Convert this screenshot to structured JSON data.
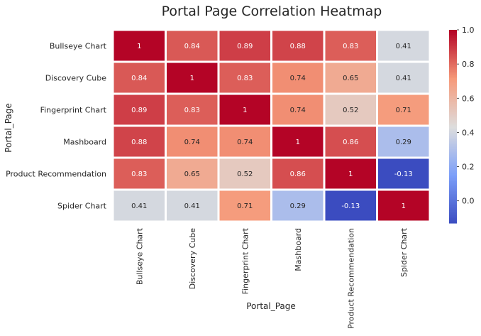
{
  "chart_data": {
    "type": "heatmap",
    "title": "Portal Page Correlation Heatmap",
    "xlabel": "Portal_Page",
    "ylabel": "Portal_Page",
    "rows": [
      "Bullseye Chart",
      "Discovery Cube",
      "Fingerprint Chart",
      "Mashboard",
      "Product Recommendation",
      "Spider Chart"
    ],
    "columns": [
      "Bullseye Chart",
      "Discovery Cube",
      "Fingerprint Chart",
      "Mashboard",
      "Product Recommendation",
      "Spider Chart"
    ],
    "values": [
      [
        1,
        0.84,
        0.89,
        0.88,
        0.83,
        0.41
      ],
      [
        0.84,
        1,
        0.83,
        0.74,
        0.65,
        0.41
      ],
      [
        0.89,
        0.83,
        1,
        0.74,
        0.52,
        0.71
      ],
      [
        0.88,
        0.74,
        0.74,
        1,
        0.86,
        0.29
      ],
      [
        0.83,
        0.65,
        0.52,
        0.86,
        1,
        -0.13
      ],
      [
        0.41,
        0.41,
        0.71,
        0.29,
        -0.13,
        1
      ]
    ],
    "cell_labels": [
      [
        "1",
        "0.84",
        "0.89",
        "0.88",
        "0.83",
        "0.41"
      ],
      [
        "0.84",
        "1",
        "0.83",
        "0.74",
        "0.65",
        "0.41"
      ],
      [
        "0.89",
        "0.83",
        "1",
        "0.74",
        "0.52",
        "0.71"
      ],
      [
        "0.88",
        "0.74",
        "0.74",
        "1",
        "0.86",
        "0.29"
      ],
      [
        "0.83",
        "0.65",
        "0.52",
        "0.86",
        "1",
        "-0.13"
      ],
      [
        "0.41",
        "0.41",
        "0.71",
        "0.29",
        "-0.13",
        "1"
      ]
    ],
    "colormap": "coolwarm",
    "color_range": [
      -0.13,
      1
    ],
    "colorbar_ticks": [
      "1.0",
      "0.8",
      "0.6",
      "0.4",
      "0.2",
      "0.0"
    ],
    "colorbar_tick_values": [
      1.0,
      0.8,
      0.6,
      0.4,
      0.2,
      0.0
    ],
    "grid": false,
    "colors": {
      "low": "#3b4cc0",
      "mid": "#dddddd",
      "high": "#b40426",
      "text_dark": "#262626",
      "text_light": "#ffffff"
    }
  }
}
